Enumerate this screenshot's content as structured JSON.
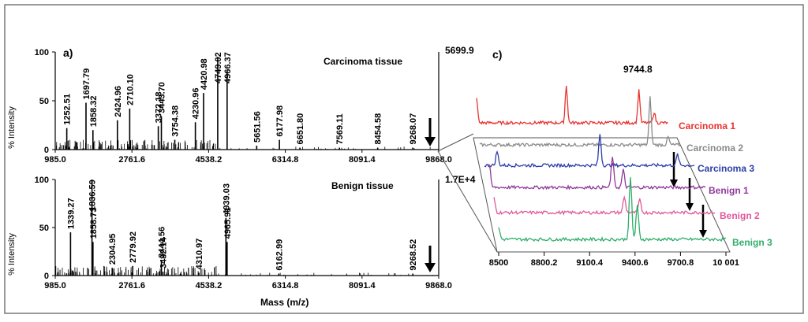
{
  "panel_a": {
    "label": "a)",
    "ylabel": "% Intensity",
    "title": "Carcinoma tissue",
    "max_intensity": "5699.9",
    "x_ticks": [
      "985.0",
      "2761.6",
      "4538.2",
      "6314.8",
      "8091.4",
      "9868.0"
    ],
    "y_ticks": [
      "0",
      "50",
      "100"
    ],
    "xlim": [
      985.0,
      9868.0
    ],
    "peaks": [
      {
        "mz": 1252.51,
        "label": "1252.51",
        "intensity": 22
      },
      {
        "mz": 1697.79,
        "label": "1697.79",
        "intensity": 48
      },
      {
        "mz": 1858.32,
        "label": "1858.32",
        "intensity": 20
      },
      {
        "mz": 2424.96,
        "label": "2424.96",
        "intensity": 30
      },
      {
        "mz": 2710.1,
        "label": "2710.10",
        "intensity": 42
      },
      {
        "mz": 3372.18,
        "label": "3372.18",
        "intensity": 24
      },
      {
        "mz": 3443.7,
        "label": "3443.70",
        "intensity": 34
      },
      {
        "mz": 3754.38,
        "label": "3754.38",
        "intensity": 10
      },
      {
        "mz": 4230.96,
        "label": "4230.96",
        "intensity": 28
      },
      {
        "mz": 4420.98,
        "label": "4420.98",
        "intensity": 58
      },
      {
        "mz": 4749.02,
        "label": "4749.02",
        "intensity": 95
      },
      {
        "mz": 4966.37,
        "label": "4966.37",
        "intensity": 82
      },
      {
        "mz": 5651.56,
        "label": "5651.56",
        "intensity": 4
      },
      {
        "mz": 6177.98,
        "label": "6177.98",
        "intensity": 10
      },
      {
        "mz": 6651.8,
        "label": "6651.80",
        "intensity": 2
      },
      {
        "mz": 7569.11,
        "label": "7569.11",
        "intensity": 2
      },
      {
        "mz": 8454.58,
        "label": "8454.58",
        "intensity": 2
      },
      {
        "mz": 9268.07,
        "label": "9268.07",
        "intensity": 2
      }
    ]
  },
  "panel_b": {
    "ylabel": "% Intensity",
    "title": "Benign tissue",
    "max_intensity": "1.7E+4",
    "xlabel": "Mass (m/z)",
    "x_ticks": [
      "985.0",
      "2761.6",
      "4538.2",
      "6314.8",
      "8091.4",
      "9868.0"
    ],
    "y_ticks": [
      "0",
      "50",
      "100"
    ],
    "xlim": [
      985.0,
      9868.0
    ],
    "peaks": [
      {
        "mz": 1339.27,
        "label": "1339.27",
        "intensity": 45
      },
      {
        "mz": 1836.59,
        "label": "1836.59",
        "intensity": 100
      },
      {
        "mz": 1858.73,
        "label": "1858.73",
        "intensity": 35
      },
      {
        "mz": 2304.95,
        "label": "2304.95",
        "intensity": 8
      },
      {
        "mz": 2779.92,
        "label": "2779.92",
        "intensity": 10
      },
      {
        "mz": 3444.56,
        "label": "3444.56",
        "intensity": 15
      },
      {
        "mz": 3482.14,
        "label": "3482.14",
        "intensity": 4
      },
      {
        "mz": 4310.97,
        "label": "4310.97",
        "intensity": 3
      },
      {
        "mz": 4939.03,
        "label": "4939.03",
        "intensity": 60
      },
      {
        "mz": 4965.91,
        "label": "4965.91",
        "intensity": 35
      },
      {
        "mz": 6162.99,
        "label": "6162.99",
        "intensity": 2
      },
      {
        "mz": 9268.52,
        "label": "9268.52",
        "intensity": 2
      }
    ]
  },
  "panel_c": {
    "label": "c)",
    "peak_label": "9744.8",
    "x_ticks": [
      "8500",
      "8800.2",
      "9100.4",
      "9400.6",
      "9700.8",
      "10 001"
    ],
    "traces": [
      {
        "name": "Carcinoma 1",
        "color": "#e8332f"
      },
      {
        "name": "Carcinoma 2",
        "color": "#8a8a8a"
      },
      {
        "name": "Carcinoma 3",
        "color": "#2c3da8"
      },
      {
        "name": "Benign 1",
        "color": "#8e3a9a"
      },
      {
        "name": "Benign 2",
        "color": "#e0589a"
      },
      {
        "name": "Benign 3",
        "color": "#2fae6a"
      }
    ]
  },
  "chart_data": [
    {
      "type": "bar",
      "title": "Carcinoma tissue",
      "xlabel": "Mass (m/z)",
      "ylabel": "% Intensity",
      "xlim": [
        985.0,
        9868.0
      ],
      "ylim": [
        0,
        100
      ],
      "x": [
        1252.51,
        1697.79,
        1858.32,
        2424.96,
        2710.1,
        3372.18,
        3443.7,
        3754.38,
        4230.96,
        4420.98,
        4749.02,
        4966.37,
        5651.56,
        6177.98,
        6651.8,
        7569.11,
        8454.58,
        9268.07
      ],
      "values": [
        22,
        48,
        20,
        30,
        42,
        24,
        34,
        10,
        28,
        58,
        95,
        82,
        4,
        10,
        2,
        2,
        2,
        2
      ]
    },
    {
      "type": "bar",
      "title": "Benign tissue",
      "xlabel": "Mass (m/z)",
      "ylabel": "% Intensity",
      "xlim": [
        985.0,
        9868.0
      ],
      "ylim": [
        0,
        100
      ],
      "x": [
        1339.27,
        1836.59,
        1858.73,
        2304.95,
        2779.92,
        3444.56,
        3482.14,
        4310.97,
        4939.03,
        4965.91,
        6162.99,
        9268.52
      ],
      "values": [
        45,
        100,
        35,
        8,
        10,
        15,
        4,
        3,
        60,
        35,
        2,
        2
      ]
    },
    {
      "type": "line",
      "title": "",
      "xlabel": "",
      "ylabel": "",
      "x_ticks": [
        "8500",
        "8800.2",
        "9100.4",
        "9400.6",
        "9700.8",
        "10 001"
      ],
      "series": [
        {
          "name": "Carcinoma 1"
        },
        {
          "name": "Carcinoma 2"
        },
        {
          "name": "Carcinoma 3"
        },
        {
          "name": "Benign 1"
        },
        {
          "name": "Benign 2"
        },
        {
          "name": "Benign 3"
        }
      ],
      "annotation": "9744.8"
    }
  ]
}
